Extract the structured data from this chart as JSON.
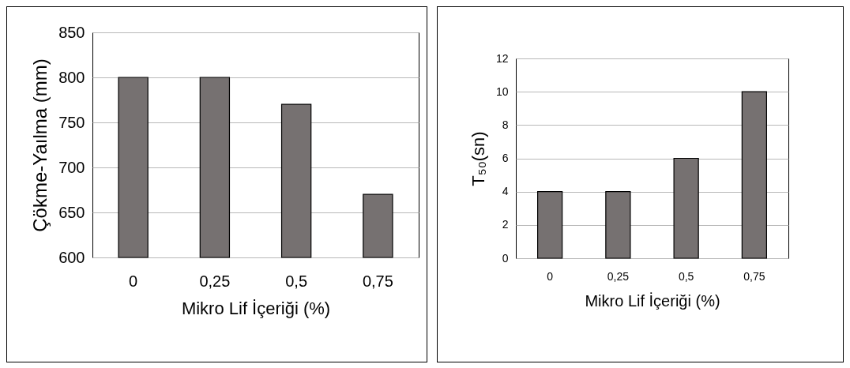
{
  "chart_data": [
    {
      "type": "bar",
      "ylabel": "Çökme-Yaılma (mm)",
      "xlabel": "Mikro Lif İçeriği (%)",
      "categories": [
        "0",
        "0,25",
        "0,5",
        "0,75"
      ],
      "values": [
        800,
        800,
        770,
        670
      ],
      "color": "#767171",
      "ylim": [
        600,
        850
      ],
      "yticks": [
        600,
        650,
        700,
        750,
        800,
        850
      ],
      "grid": "y"
    },
    {
      "type": "bar",
      "ylabel": "T₅₀(sn)",
      "xlabel": "Mikro Lif İçeriği (%)",
      "categories": [
        "0",
        "0,25",
        "0,5",
        "0,75"
      ],
      "values": [
        4,
        4,
        6,
        10
      ],
      "color": "#767171",
      "ylim": [
        0,
        12
      ],
      "yticks": [
        0,
        2,
        4,
        6,
        8,
        10,
        12
      ],
      "grid": "y"
    }
  ]
}
